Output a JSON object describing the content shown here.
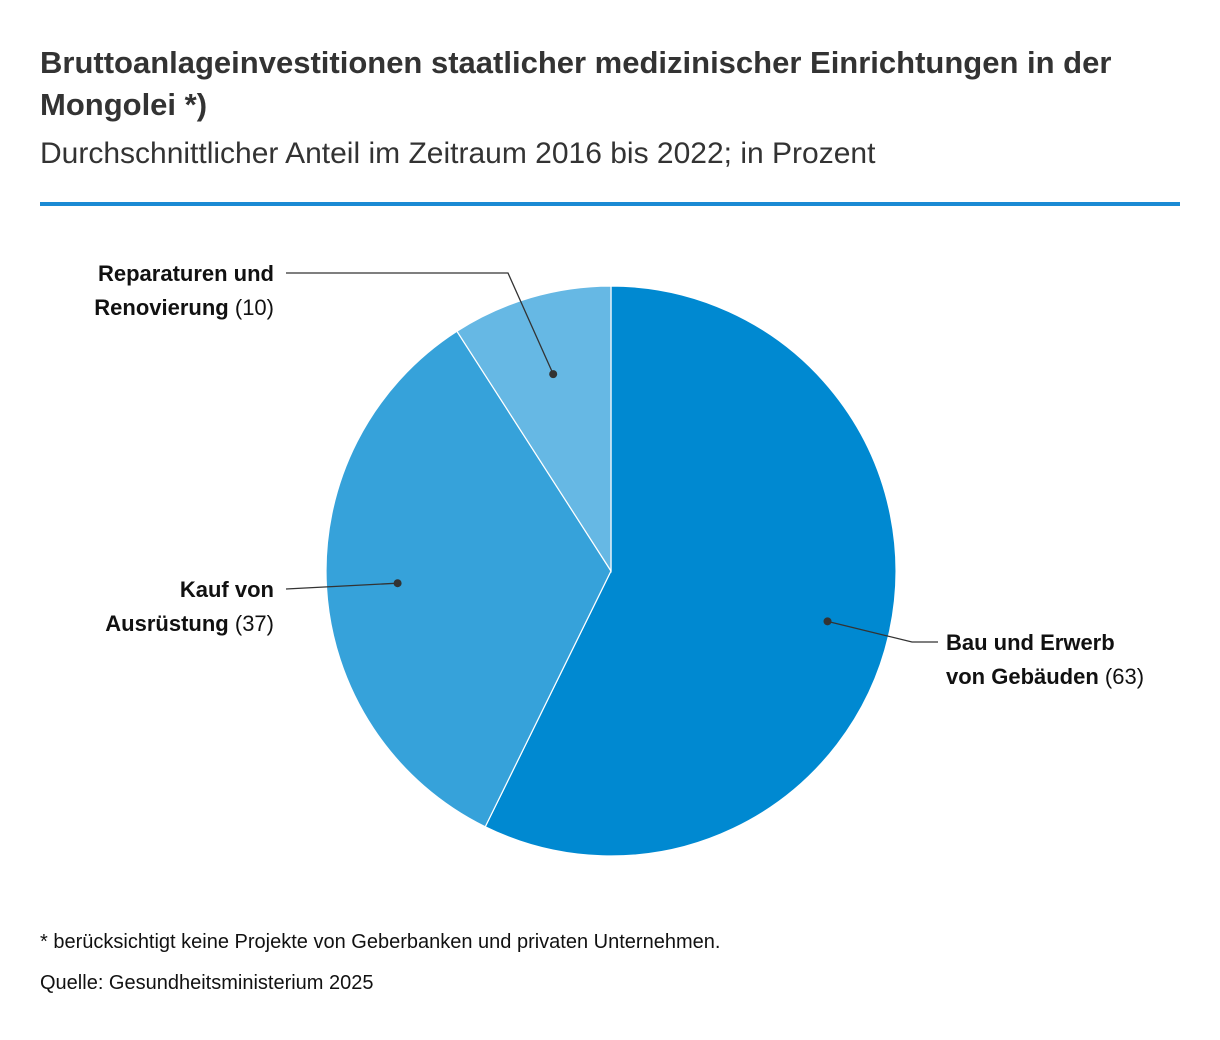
{
  "title": "Bruttoanlageinvestitionen staatlicher medizinischer Einrichtungen in der Mongolei *)",
  "subtitle": "Durchschnittlicher Anteil im Zeitraum 2016 bis 2022; in Prozent",
  "footnote": "* berücksichtigt keine Projekte von Geberbanken und privaten Unternehmen.",
  "source": "Quelle: Gesundheitsministerium 2025",
  "colors": {
    "accent_rule": "#1a8ad4",
    "slice_1": "#0089d1",
    "slice_2": "#36a2da",
    "slice_3": "#66b8e4",
    "leader": "#333333"
  },
  "chart_data": {
    "type": "pie",
    "start": "12 o'clock, clockwise",
    "slices": [
      {
        "label_lines": [
          "Bau und Erwerb",
          "von Gebäuden"
        ],
        "value": 63,
        "value_text": "(63)",
        "color": "#0089d1",
        "label_side": "right"
      },
      {
        "label_lines": [
          "Kauf von",
          "Ausrüstung"
        ],
        "value": 37,
        "value_text": "(37)",
        "color": "#36a2da",
        "label_side": "left"
      },
      {
        "label_lines": [
          "Reparaturen und",
          "Renovierung"
        ],
        "value": 10,
        "value_text": "(10)",
        "color": "#66b8e4",
        "label_side": "left"
      }
    ]
  }
}
